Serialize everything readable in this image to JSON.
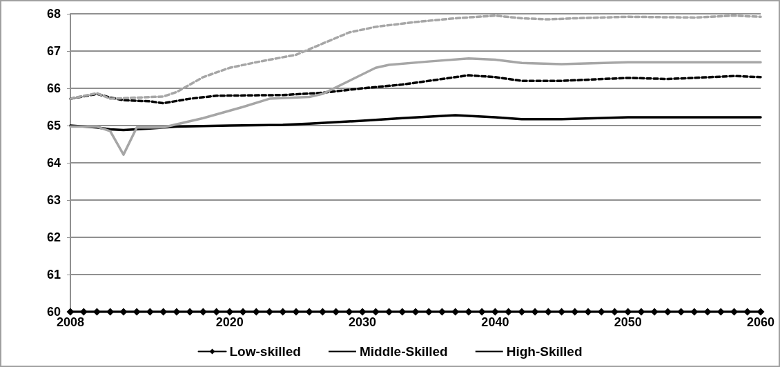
{
  "chart_data": {
    "type": "line",
    "xlim": [
      2008,
      2060
    ],
    "xticks": [
      2008,
      2020,
      2030,
      2040,
      2050,
      2060
    ],
    "ylim": [
      60,
      68
    ],
    "yticks": [
      60,
      61,
      62,
      63,
      64,
      65,
      66,
      67,
      68
    ],
    "grid": "y",
    "legend": "bottom",
    "series": [
      {
        "name": "Low-skilled",
        "color": "#000000",
        "marker": "diamond",
        "line_style": "solid",
        "x": [
          2008,
          2009,
          2010,
          2011,
          2012,
          2013,
          2014,
          2015,
          2016,
          2017,
          2018,
          2019,
          2020,
          2021,
          2022,
          2023,
          2024,
          2025,
          2026,
          2027,
          2028,
          2029,
          2030,
          2031,
          2032,
          2033,
          2034,
          2035,
          2036,
          2037,
          2038,
          2039,
          2040,
          2041,
          2042,
          2043,
          2044,
          2045,
          2046,
          2047,
          2048,
          2049,
          2050,
          2051,
          2052,
          2053,
          2054,
          2055,
          2056,
          2057,
          2058,
          2059,
          2060
        ],
        "values": [
          60,
          60,
          60,
          60,
          60,
          60,
          60,
          60,
          60,
          60,
          60,
          60,
          60,
          60,
          60,
          60,
          60,
          60,
          60,
          60,
          60,
          60,
          60,
          60,
          60,
          60,
          60,
          60,
          60,
          60,
          60,
          60,
          60,
          60,
          60,
          60,
          60,
          60,
          60,
          60,
          60,
          60,
          60,
          60,
          60,
          60,
          60,
          60,
          60,
          60,
          60,
          60,
          60
        ]
      },
      {
        "name": "Middle-Skilled",
        "color": "#000000",
        "marker": "none",
        "line_style": "solid",
        "x": [
          2008,
          2010,
          2011,
          2012,
          2014,
          2016,
          2020,
          2024,
          2026,
          2030,
          2033,
          2037,
          2040,
          2042,
          2045,
          2050,
          2055,
          2060
        ],
        "values": [
          65.0,
          64.95,
          64.9,
          64.88,
          64.92,
          64.97,
          65.0,
          65.02,
          65.05,
          65.13,
          65.2,
          65.28,
          65.22,
          65.17,
          65.17,
          65.22,
          65.22,
          65.22
        ]
      },
      {
        "name": "High-Skilled",
        "color": "#000000",
        "marker": "none",
        "line_style": "dashed",
        "x": [
          2008,
          2010,
          2011,
          2012,
          2014,
          2015,
          2017,
          2019,
          2024,
          2027,
          2030,
          2033,
          2036,
          2038,
          2040,
          2042,
          2045,
          2050,
          2053,
          2055,
          2058,
          2060
        ],
        "values": [
          65.72,
          65.85,
          65.75,
          65.68,
          65.65,
          65.6,
          65.72,
          65.8,
          65.82,
          65.88,
          66.0,
          66.1,
          66.25,
          66.35,
          66.3,
          66.2,
          66.2,
          66.28,
          66.25,
          66.28,
          66.33,
          66.3
        ]
      },
      {
        "color": "#a6a6a6",
        "marker": "none",
        "line_style": "solid",
        "x": [
          2008,
          2010,
          2011,
          2012,
          2013,
          2015,
          2018,
          2021,
          2023,
          2026,
          2027,
          2029,
          2031,
          2032,
          2035,
          2038,
          2040,
          2042,
          2045,
          2050,
          2060
        ],
        "values": [
          64.97,
          64.97,
          64.85,
          64.22,
          64.95,
          64.95,
          65.2,
          65.5,
          65.72,
          65.77,
          65.85,
          66.2,
          66.55,
          66.63,
          66.72,
          66.8,
          66.77,
          66.68,
          66.65,
          66.7,
          66.7
        ]
      },
      {
        "color": "#a6a6a6",
        "marker": "none",
        "line_style": "dashed",
        "x": [
          2008,
          2010,
          2011,
          2013,
          2015,
          2016,
          2018,
          2020,
          2022,
          2025,
          2027,
          2029,
          2031,
          2034,
          2037,
          2040,
          2042,
          2044,
          2046,
          2050,
          2055,
          2058,
          2060
        ],
        "values": [
          65.72,
          65.87,
          65.72,
          65.75,
          65.78,
          65.9,
          66.3,
          66.55,
          66.7,
          66.9,
          67.2,
          67.5,
          67.65,
          67.78,
          67.88,
          67.95,
          67.88,
          67.85,
          67.88,
          67.92,
          67.9,
          67.95,
          67.92
        ]
      }
    ]
  }
}
